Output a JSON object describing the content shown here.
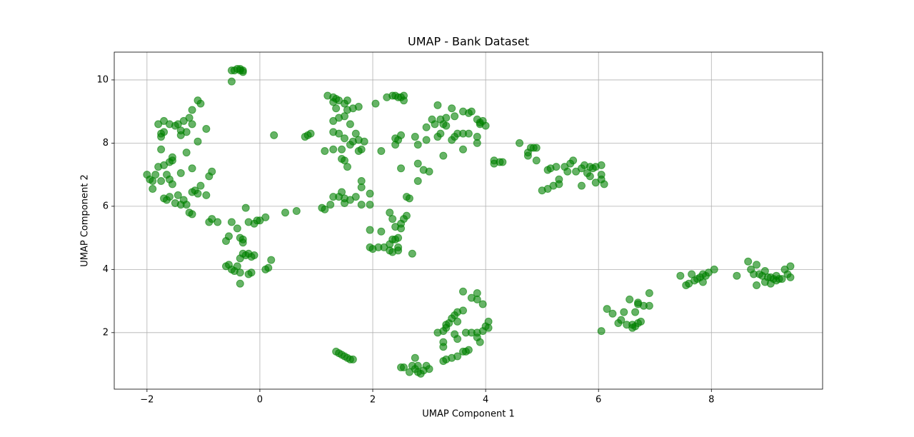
{
  "chart_data": {
    "type": "scatter",
    "title": "UMAP - Bank Dataset",
    "x_label": "UMAP Component 1",
    "y_label": "UMAP Component 2",
    "color": "green",
    "grid": true,
    "xlim": [
      -2.58,
      9.97
    ],
    "ylim": [
      0.21,
      10.88
    ],
    "xticks": [
      {
        "value": -2,
        "label": "−2"
      },
      0,
      2,
      4,
      6,
      8
    ],
    "yticks": [
      2,
      4,
      6,
      8,
      10
    ],
    "x": [
      -1.75,
      -1.7,
      -1.6,
      -1.5,
      -1.4,
      -1.35,
      -1.25,
      -1.2,
      -1.1,
      -1.05,
      -1.2,
      -1.4,
      -1.7,
      -1.75,
      -1.75,
      -1.55,
      -1.55,
      -1.6,
      -1.7,
      -1.8,
      -1.85,
      -1.9,
      -1.95,
      -2.0,
      -1.9,
      -1.75,
      -1.65,
      -1.6,
      -1.55,
      -1.7,
      -1.65,
      -1.6,
      -1.5,
      -1.45,
      -1.4,
      -1.35,
      -1.3,
      -1.4,
      -1.2,
      -1.15,
      -1.1,
      -1.05,
      -1.2,
      -1.25,
      -1.2,
      -0.9,
      -0.85,
      -0.95,
      -0.9,
      -0.85,
      -0.75,
      -1.1,
      -1.45,
      -1.3,
      -1.8,
      -0.95,
      -1.3,
      -0.5,
      -0.45,
      -0.4,
      -0.35,
      -0.3,
      -0.3,
      -0.35,
      -0.5,
      -0.6,
      -0.55,
      -0.5,
      -0.45,
      -0.4,
      -0.35,
      -0.3,
      -0.25,
      -0.2,
      -0.15,
      -0.1,
      -0.35,
      -0.2,
      -0.15,
      -0.35,
      -0.3,
      -0.35,
      -0.3,
      -0.4,
      -0.5,
      -0.55,
      -0.6,
      -0.25,
      -0.2,
      -0.1,
      -0.05,
      0.0,
      0.1,
      0.1,
      0.15,
      0.2,
      0.25,
      0.45,
      0.65,
      0.8,
      0.85,
      0.9,
      1.2,
      1.3,
      1.35,
      1.4,
      1.3,
      1.5,
      1.55,
      1.55,
      1.65,
      1.75,
      1.35,
      1.4,
      1.3,
      1.5,
      1.6,
      1.3,
      1.4,
      1.5,
      1.7,
      1.65,
      1.6,
      1.45,
      1.3,
      1.15,
      1.45,
      1.5,
      1.55,
      1.75,
      1.8,
      1.75,
      1.85,
      1.8,
      1.8,
      1.7,
      1.6,
      1.5,
      1.45,
      1.4,
      1.3,
      1.25,
      1.15,
      1.1,
      1.5,
      1.95,
      1.8,
      1.95,
      2.1,
      2.2,
      2.3,
      2.35,
      2.3,
      2.35,
      2.4,
      2.45,
      2.5,
      2.4,
      2.5,
      2.55,
      2.35,
      2.3,
      2.45,
      2.45,
      2.0,
      1.95,
      1.95,
      2.15,
      2.7,
      2.6,
      2.05,
      2.25,
      2.35,
      2.4,
      2.45,
      2.5,
      2.55,
      2.55,
      2.15,
      2.4,
      2.45,
      2.5,
      2.4,
      2.5,
      2.6,
      2.65,
      2.75,
      2.8,
      2.8,
      2.8,
      2.95,
      3.05,
      3.15,
      3.1,
      3.2,
      3.3,
      3.25,
      3.2,
      3.15,
      3.3,
      3.4,
      3.45,
      3.5,
      3.4,
      3.45,
      3.6,
      3.7,
      3.75,
      3.6,
      3.7,
      3.85,
      3.9,
      3.9,
      3.95,
      4.0,
      3.85,
      3.85,
      3.6,
      3.25,
      3.0,
      2.9,
      2.95,
      4.15,
      4.15,
      4.25,
      4.3,
      4.6,
      4.75,
      4.75,
      4.8,
      4.85,
      4.9,
      4.9,
      5.0,
      5.1,
      5.1,
      5.15,
      5.25,
      5.2,
      5.3,
      5.3,
      5.4,
      5.45,
      5.5,
      5.55,
      5.6,
      5.7,
      5.75,
      5.7,
      5.8,
      5.85,
      5.9,
      5.95,
      5.95,
      6.05,
      6.05,
      6.05,
      6.1,
      5.85,
      3.15,
      3.25,
      3.25,
      3.25,
      3.3,
      3.35,
      3.3,
      3.4,
      3.45,
      3.5,
      3.5,
      3.6,
      3.65,
      3.75,
      3.85,
      3.9,
      3.85,
      3.95,
      4.0,
      4.05,
      4.05,
      3.95,
      3.6,
      3.75,
      3.85,
      3.85,
      3.5,
      3.45,
      3.3,
      3.4,
      3.5,
      3.6,
      3.65,
      3.7,
      3.25,
      1.35,
      1.4,
      1.45,
      1.5,
      1.55,
      1.6,
      1.65,
      2.5,
      2.55,
      2.65,
      2.7,
      2.75,
      2.8,
      2.8,
      2.85,
      2.9,
      2.95,
      3.0,
      2.75,
      6.05,
      6.15,
      6.25,
      6.35,
      6.4,
      6.45,
      6.5,
      6.55,
      6.6,
      6.6,
      6.65,
      6.65,
      6.7,
      6.7,
      6.75,
      6.8,
      6.9,
      6.9,
      6.7,
      7.45,
      7.55,
      7.6,
      7.65,
      7.7,
      7.75,
      7.8,
      7.85,
      7.85,
      7.9,
      7.95,
      8.05,
      8.45,
      8.65,
      8.7,
      8.75,
      8.8,
      8.8,
      8.85,
      8.9,
      8.95,
      8.95,
      9.0,
      9.05,
      9.1,
      9.15,
      9.15,
      9.2,
      9.25,
      9.3,
      9.35,
      9.4,
      9.4,
      9.05
    ],
    "values": [
      8.3,
      8.7,
      8.6,
      8.55,
      8.4,
      8.7,
      8.8,
      8.6,
      9.35,
      9.25,
      9.05,
      8.25,
      8.35,
      8.2,
      7.8,
      7.55,
      7.45,
      7.4,
      7.3,
      7.25,
      7.0,
      6.8,
      6.85,
      7.0,
      6.55,
      6.8,
      7.0,
      6.85,
      6.7,
      6.25,
      6.2,
      6.3,
      6.1,
      6.35,
      6.05,
      6.2,
      6.05,
      7.05,
      7.2,
      6.5,
      6.4,
      6.65,
      6.45,
      5.8,
      5.75,
      6.95,
      7.1,
      6.35,
      5.5,
      5.6,
      5.5,
      8.05,
      8.6,
      8.35,
      8.6,
      8.45,
      7.7,
      9.95,
      10.3,
      10.35,
      10.35,
      10.3,
      10.25,
      10.3,
      10.3,
      4.1,
      4.15,
      4.0,
      3.95,
      4.1,
      3.9,
      4.5,
      4.45,
      4.5,
      4.4,
      4.45,
      3.55,
      3.85,
      3.9,
      4.35,
      4.85,
      5.0,
      4.95,
      5.3,
      5.5,
      5.05,
      4.9,
      5.95,
      5.5,
      5.45,
      5.55,
      5.55,
      5.65,
      4.0,
      4.05,
      4.3,
      8.25,
      5.8,
      5.85,
      8.2,
      8.25,
      8.3,
      9.5,
      9.45,
      9.4,
      9.35,
      9.3,
      9.25,
      9.35,
      9.05,
      9.1,
      9.15,
      9.1,
      8.8,
      8.7,
      8.85,
      8.6,
      8.35,
      8.3,
      8.15,
      8.3,
      8.05,
      7.95,
      7.8,
      7.8,
      7.75,
      7.5,
      7.45,
      7.25,
      7.75,
      7.8,
      8.1,
      8.05,
      6.8,
      6.6,
      6.3,
      6.2,
      6.25,
      6.45,
      6.3,
      6.3,
      6.05,
      5.9,
      5.95,
      6.1,
      6.4,
      6.05,
      6.05,
      4.7,
      4.7,
      4.6,
      4.55,
      4.8,
      4.95,
      4.95,
      5.0,
      5.3,
      5.35,
      5.45,
      5.6,
      5.6,
      5.8,
      4.7,
      4.6,
      4.65,
      4.7,
      5.25,
      5.2,
      4.5,
      5.7,
      9.25,
      9.45,
      9.5,
      9.5,
      9.45,
      9.45,
      9.5,
      9.35,
      7.75,
      7.95,
      8.1,
      8.25,
      8.15,
      7.2,
      6.3,
      6.25,
      8.2,
      7.95,
      7.35,
      6.8,
      8.5,
      8.75,
      9.2,
      8.6,
      8.75,
      8.8,
      8.6,
      8.3,
      8.2,
      8.55,
      9.1,
      8.85,
      8.3,
      8.1,
      8.2,
      9.0,
      8.95,
      9.0,
      8.3,
      8.3,
      8.75,
      8.65,
      8.6,
      8.7,
      8.55,
      8.2,
      8.0,
      7.8,
      7.6,
      7.1,
      7.15,
      8.1,
      7.45,
      7.35,
      7.4,
      7.4,
      8.0,
      7.7,
      7.6,
      7.85,
      7.85,
      7.85,
      7.45,
      6.5,
      6.55,
      7.15,
      7.2,
      7.25,
      6.65,
      6.7,
      6.85,
      7.25,
      7.1,
      7.35,
      7.45,
      7.1,
      7.2,
      7.3,
      6.65,
      7.05,
      6.95,
      7.2,
      7.25,
      6.75,
      7.3,
      7.0,
      6.85,
      6.7,
      7.25,
      2.0,
      1.7,
      1.55,
      2.05,
      2.25,
      2.3,
      2.15,
      2.45,
      2.55,
      2.65,
      2.35,
      2.7,
      2.0,
      2.0,
      1.85,
      1.7,
      2.0,
      2.05,
      2.2,
      2.15,
      2.35,
      2.9,
      3.3,
      3.1,
      3.05,
      3.25,
      1.8,
      1.95,
      1.15,
      1.2,
      1.25,
      1.4,
      1.4,
      1.45,
      1.1,
      1.4,
      1.35,
      1.3,
      1.25,
      1.2,
      1.15,
      1.15,
      0.9,
      0.9,
      0.75,
      0.95,
      1.2,
      0.75,
      0.95,
      0.7,
      0.8,
      0.95,
      0.85,
      0.85,
      2.05,
      2.75,
      2.6,
      2.3,
      2.4,
      2.65,
      2.25,
      3.05,
      2.15,
      2.25,
      2.2,
      2.65,
      2.95,
      2.3,
      2.35,
      2.85,
      2.85,
      3.25,
      2.9,
      3.8,
      3.5,
      3.55,
      3.85,
      3.65,
      3.7,
      3.75,
      3.6,
      3.85,
      3.8,
      3.9,
      4.0,
      3.8,
      4.25,
      4.0,
      3.85,
      3.5,
      4.15,
      3.85,
      3.8,
      3.95,
      3.6,
      3.75,
      3.55,
      3.7,
      3.8,
      3.65,
      3.7,
      3.7,
      4.0,
      3.85,
      4.1,
      3.75,
      3.75
    ]
  }
}
